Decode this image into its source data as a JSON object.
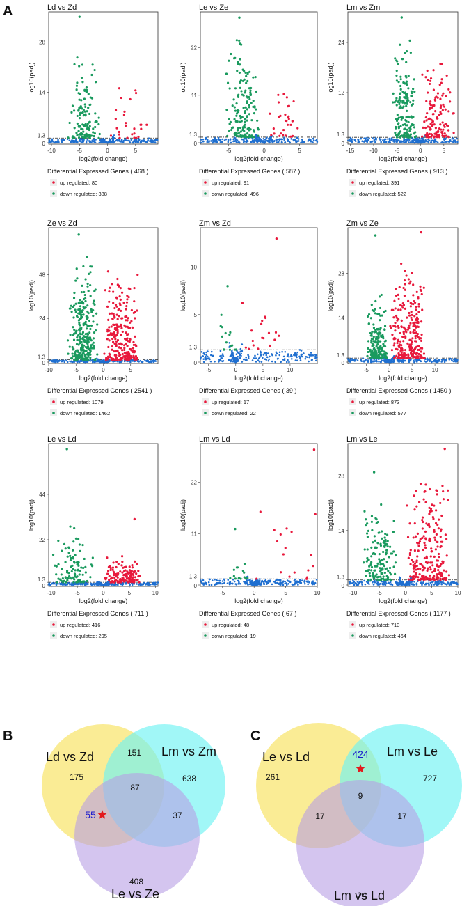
{
  "panels": {
    "a": "A",
    "b": "B",
    "c": "C"
  },
  "colors": {
    "up": "#e8193c",
    "down": "#1a9a5e",
    "ns": "#1f6fd0",
    "venn_yellow": "#f8e671",
    "venn_cyan": "#6ff3f3",
    "venn_purple": "#b79ee4",
    "star": "#e31a1c",
    "highlight": "#1a1acc"
  },
  "labels": {
    "ylab": "log10(padj)",
    "xlab": "log2(fold change)",
    "deg_prefix": "Differential Expressed Genes (",
    "deg_suffix": ")",
    "up": "up regulated: ",
    "down": "down regulated: "
  },
  "chart_data": [
    {
      "type": "scatter",
      "title": "Ld  vs Zd",
      "xticks": [
        -10,
        -5,
        0,
        5
      ],
      "yticks": [
        0,
        1.3,
        14,
        28
      ],
      "xlim": [
        -10.5,
        9
      ],
      "ylim": [
        0,
        36
      ],
      "total": 468,
      "up": 80,
      "down": 388,
      "upmax": [
        6,
        5,
        18
      ],
      "downmax": [
        -5,
        35,
        25
      ],
      "width": "asym"
    },
    {
      "type": "scatter",
      "title": "Le vs Ze",
      "xticks": [
        -5,
        0,
        5
      ],
      "yticks": [
        0,
        1.3,
        11,
        22
      ],
      "xlim": [
        -9,
        7.5
      ],
      "ylim": [
        0,
        30
      ],
      "total": 587,
      "up": 91,
      "down": 496,
      "upmax": [
        4,
        5,
        14
      ],
      "downmax": [
        -3.5,
        29,
        25
      ],
      "width": "asym"
    },
    {
      "type": "scatter",
      "title": "Lm vs Zm",
      "xticks": [
        -15,
        -10,
        -5,
        0,
        5
      ],
      "yticks": [
        0,
        1.3,
        12,
        24
      ],
      "xlim": [
        -15.5,
        8
      ],
      "ylim": [
        0,
        31
      ],
      "total": 913,
      "up": 391,
      "down": 522,
      "upmax": [
        6,
        3,
        19
      ],
      "downmax": [
        -4,
        30,
        27
      ],
      "width": "asym"
    },
    {
      "type": "scatter",
      "title": "Ze  vs Zd",
      "xticks": [
        -10,
        -5,
        0,
        5
      ],
      "yticks": [
        0,
        1.3,
        24,
        48
      ],
      "xlim": [
        -10,
        10
      ],
      "ylim": [
        0,
        73
      ],
      "total": 2541,
      "up": 1079,
      "down": 1462,
      "upmax": [
        5,
        7,
        55
      ],
      "downmax": [
        -4.5,
        70,
        60
      ],
      "width": "sym"
    },
    {
      "type": "scatter",
      "title": "Zm vs Zd",
      "xticks": [
        -5,
        0,
        5,
        10
      ],
      "yticks": [
        0,
        1.3,
        5,
        10
      ],
      "xlim": [
        -6.5,
        15
      ],
      "ylim": [
        0,
        14
      ],
      "total": 39,
      "up": 17,
      "down": 22,
      "upmax": [
        7.5,
        13,
        6
      ],
      "downmax": [
        -1.5,
        8,
        5
      ],
      "width": "narrow"
    },
    {
      "type": "scatter",
      "title": "Zm vs Ze",
      "xticks": [
        -5,
        0,
        5,
        10
      ],
      "yticks": [
        0,
        1.3,
        14,
        28
      ],
      "xlim": [
        -9,
        15
      ],
      "ylim": [
        0,
        42
      ],
      "total": 1450,
      "up": 873,
      "down": 577,
      "upmax": [
        7,
        41,
        32
      ],
      "downmax": [
        -3,
        40,
        22
      ],
      "width": "sym"
    },
    {
      "type": "scatter",
      "title": "Le vs Ld",
      "xticks": [
        -10,
        -5,
        0,
        5,
        10
      ],
      "yticks": [
        0,
        1.3,
        22,
        44
      ],
      "xlim": [
        -10.5,
        10.5
      ],
      "ylim": [
        0,
        68
      ],
      "total": 711,
      "up": 416,
      "down": 295,
      "upmax": [
        6,
        32,
        15
      ],
      "downmax": [
        -7,
        66,
        28
      ],
      "width": "sym"
    },
    {
      "type": "scatter",
      "title": "Lm vs Ld",
      "xticks": [
        -5,
        0,
        5,
        10
      ],
      "yticks": [
        0,
        1.3,
        11,
        22
      ],
      "xlim": [
        -8.5,
        10
      ],
      "ylim": [
        0,
        30
      ],
      "total": 67,
      "up": 48,
      "down": 19,
      "upmax": [
        9.5,
        29,
        16
      ],
      "downmax": [
        -3,
        12,
        4
      ],
      "width": "narrow"
    },
    {
      "type": "scatter",
      "title": "Lm vs Le",
      "xticks": [
        -10,
        -5,
        0,
        5,
        10
      ],
      "yticks": [
        0,
        1.3,
        14,
        28
      ],
      "xlim": [
        -11,
        10
      ],
      "ylim": [
        0,
        36
      ],
      "total": 1177,
      "up": 713,
      "down": 464,
      "upmax": [
        7.5,
        35,
        30
      ],
      "downmax": [
        -6,
        29,
        22
      ],
      "width": "asym"
    }
  ],
  "venn": [
    {
      "letter": "B",
      "sets": [
        "Ld vs Zd",
        "Lm vs Zm",
        "Le vs Ze"
      ],
      "regions": {
        "only_a": "175",
        "only_b": "638",
        "only_c": "408",
        "ab": "151",
        "ac": "55",
        "bc": "37",
        "abc": "87"
      },
      "star_region": "ac"
    },
    {
      "letter": "C",
      "sets": [
        "Le vs Ld",
        "Lm vs Le",
        "Lm vs Ld"
      ],
      "regions": {
        "only_a": "261",
        "only_b": "727",
        "only_c": "24",
        "ab": "424",
        "ac": "17",
        "bc": "17",
        "abc": "9"
      },
      "star_region": "ab"
    }
  ]
}
